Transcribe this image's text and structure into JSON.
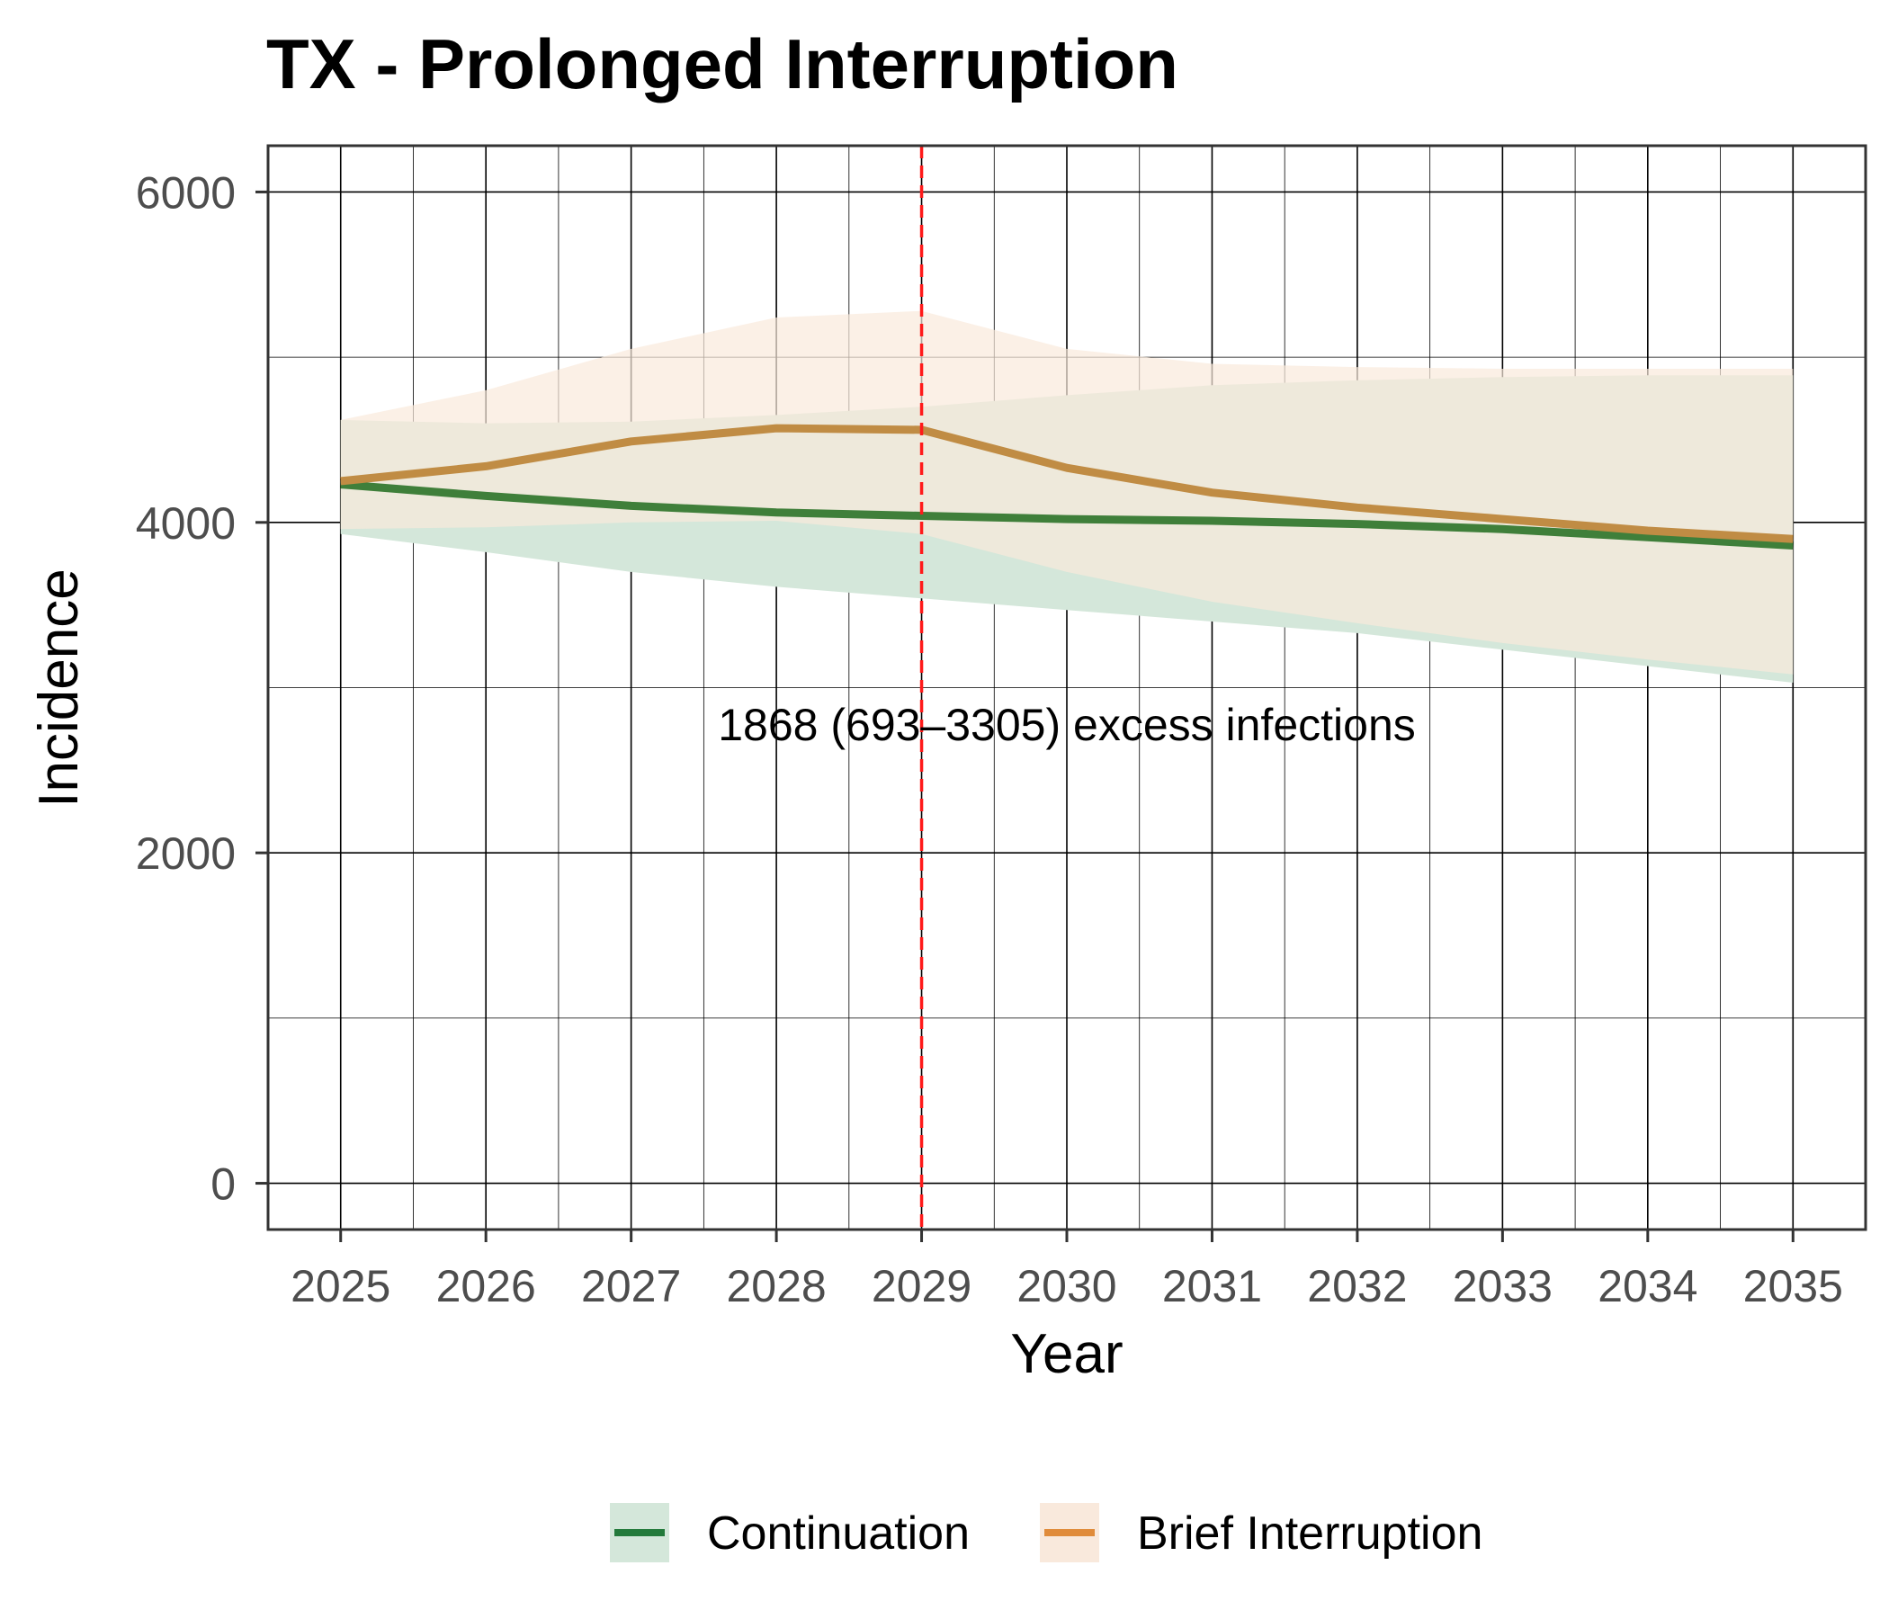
{
  "chart_data": {
    "type": "line",
    "title": "TX - Prolonged Interruption",
    "xlabel": "Year",
    "ylabel": "Incidence",
    "xlim": [
      2024.5,
      2035.5
    ],
    "ylim": [
      -280,
      6280
    ],
    "x_ticks": [
      2025,
      2026,
      2027,
      2028,
      2029,
      2030,
      2031,
      2032,
      2033,
      2034,
      2035
    ],
    "x_tick_labels": [
      "2025",
      "2026",
      "2027",
      "2028",
      "2029",
      "2030",
      "2031",
      "2032",
      "2033",
      "2034",
      "2035"
    ],
    "y_ticks": [
      0,
      2000,
      4000,
      6000
    ],
    "y_tick_labels": [
      "0",
      "2000",
      "4000",
      "6000"
    ],
    "y_minor_ticks": [
      1000,
      3000,
      5000
    ],
    "grid": true,
    "legend_position": "bottom",
    "x": [
      2025,
      2026,
      2027,
      2028,
      2029,
      2030,
      2031,
      2032,
      2033,
      2034,
      2035
    ],
    "series": [
      {
        "name": "Continuation",
        "line_color": "#3f7f3a",
        "ribbon_color": "#d4e7da",
        "legend_line_color": "#237a3b",
        "values": [
          4230,
          4160,
          4100,
          4060,
          4040,
          4020,
          4010,
          3990,
          3960,
          3910,
          3860
        ],
        "lower": [
          3930,
          3820,
          3700,
          3610,
          3540,
          3470,
          3400,
          3330,
          3230,
          3130,
          3030
        ],
        "upper": [
          4620,
          4600,
          4610,
          4650,
          4700,
          4770,
          4830,
          4860,
          4880,
          4890,
          4890
        ]
      },
      {
        "name": "Brief Interruption",
        "line_color": "#c08c44",
        "ribbon_color": "#f9e9dc",
        "legend_line_color": "#e08b3a",
        "values": [
          4250,
          4340,
          4490,
          4570,
          4560,
          4330,
          4180,
          4090,
          4020,
          3950,
          3900
        ],
        "lower": [
          3960,
          3970,
          4000,
          4010,
          3930,
          3700,
          3520,
          3390,
          3270,
          3170,
          3080
        ],
        "upper": [
          4620,
          4800,
          5050,
          5240,
          5280,
          5050,
          4960,
          4940,
          4930,
          4930,
          4930
        ]
      }
    ],
    "vline": {
      "x": 2029,
      "color": "#ff1a1a",
      "style": "dashed"
    },
    "annotation": {
      "text": "1868 (693–3305) excess infections",
      "x": 2030.0,
      "y": 2780
    }
  }
}
